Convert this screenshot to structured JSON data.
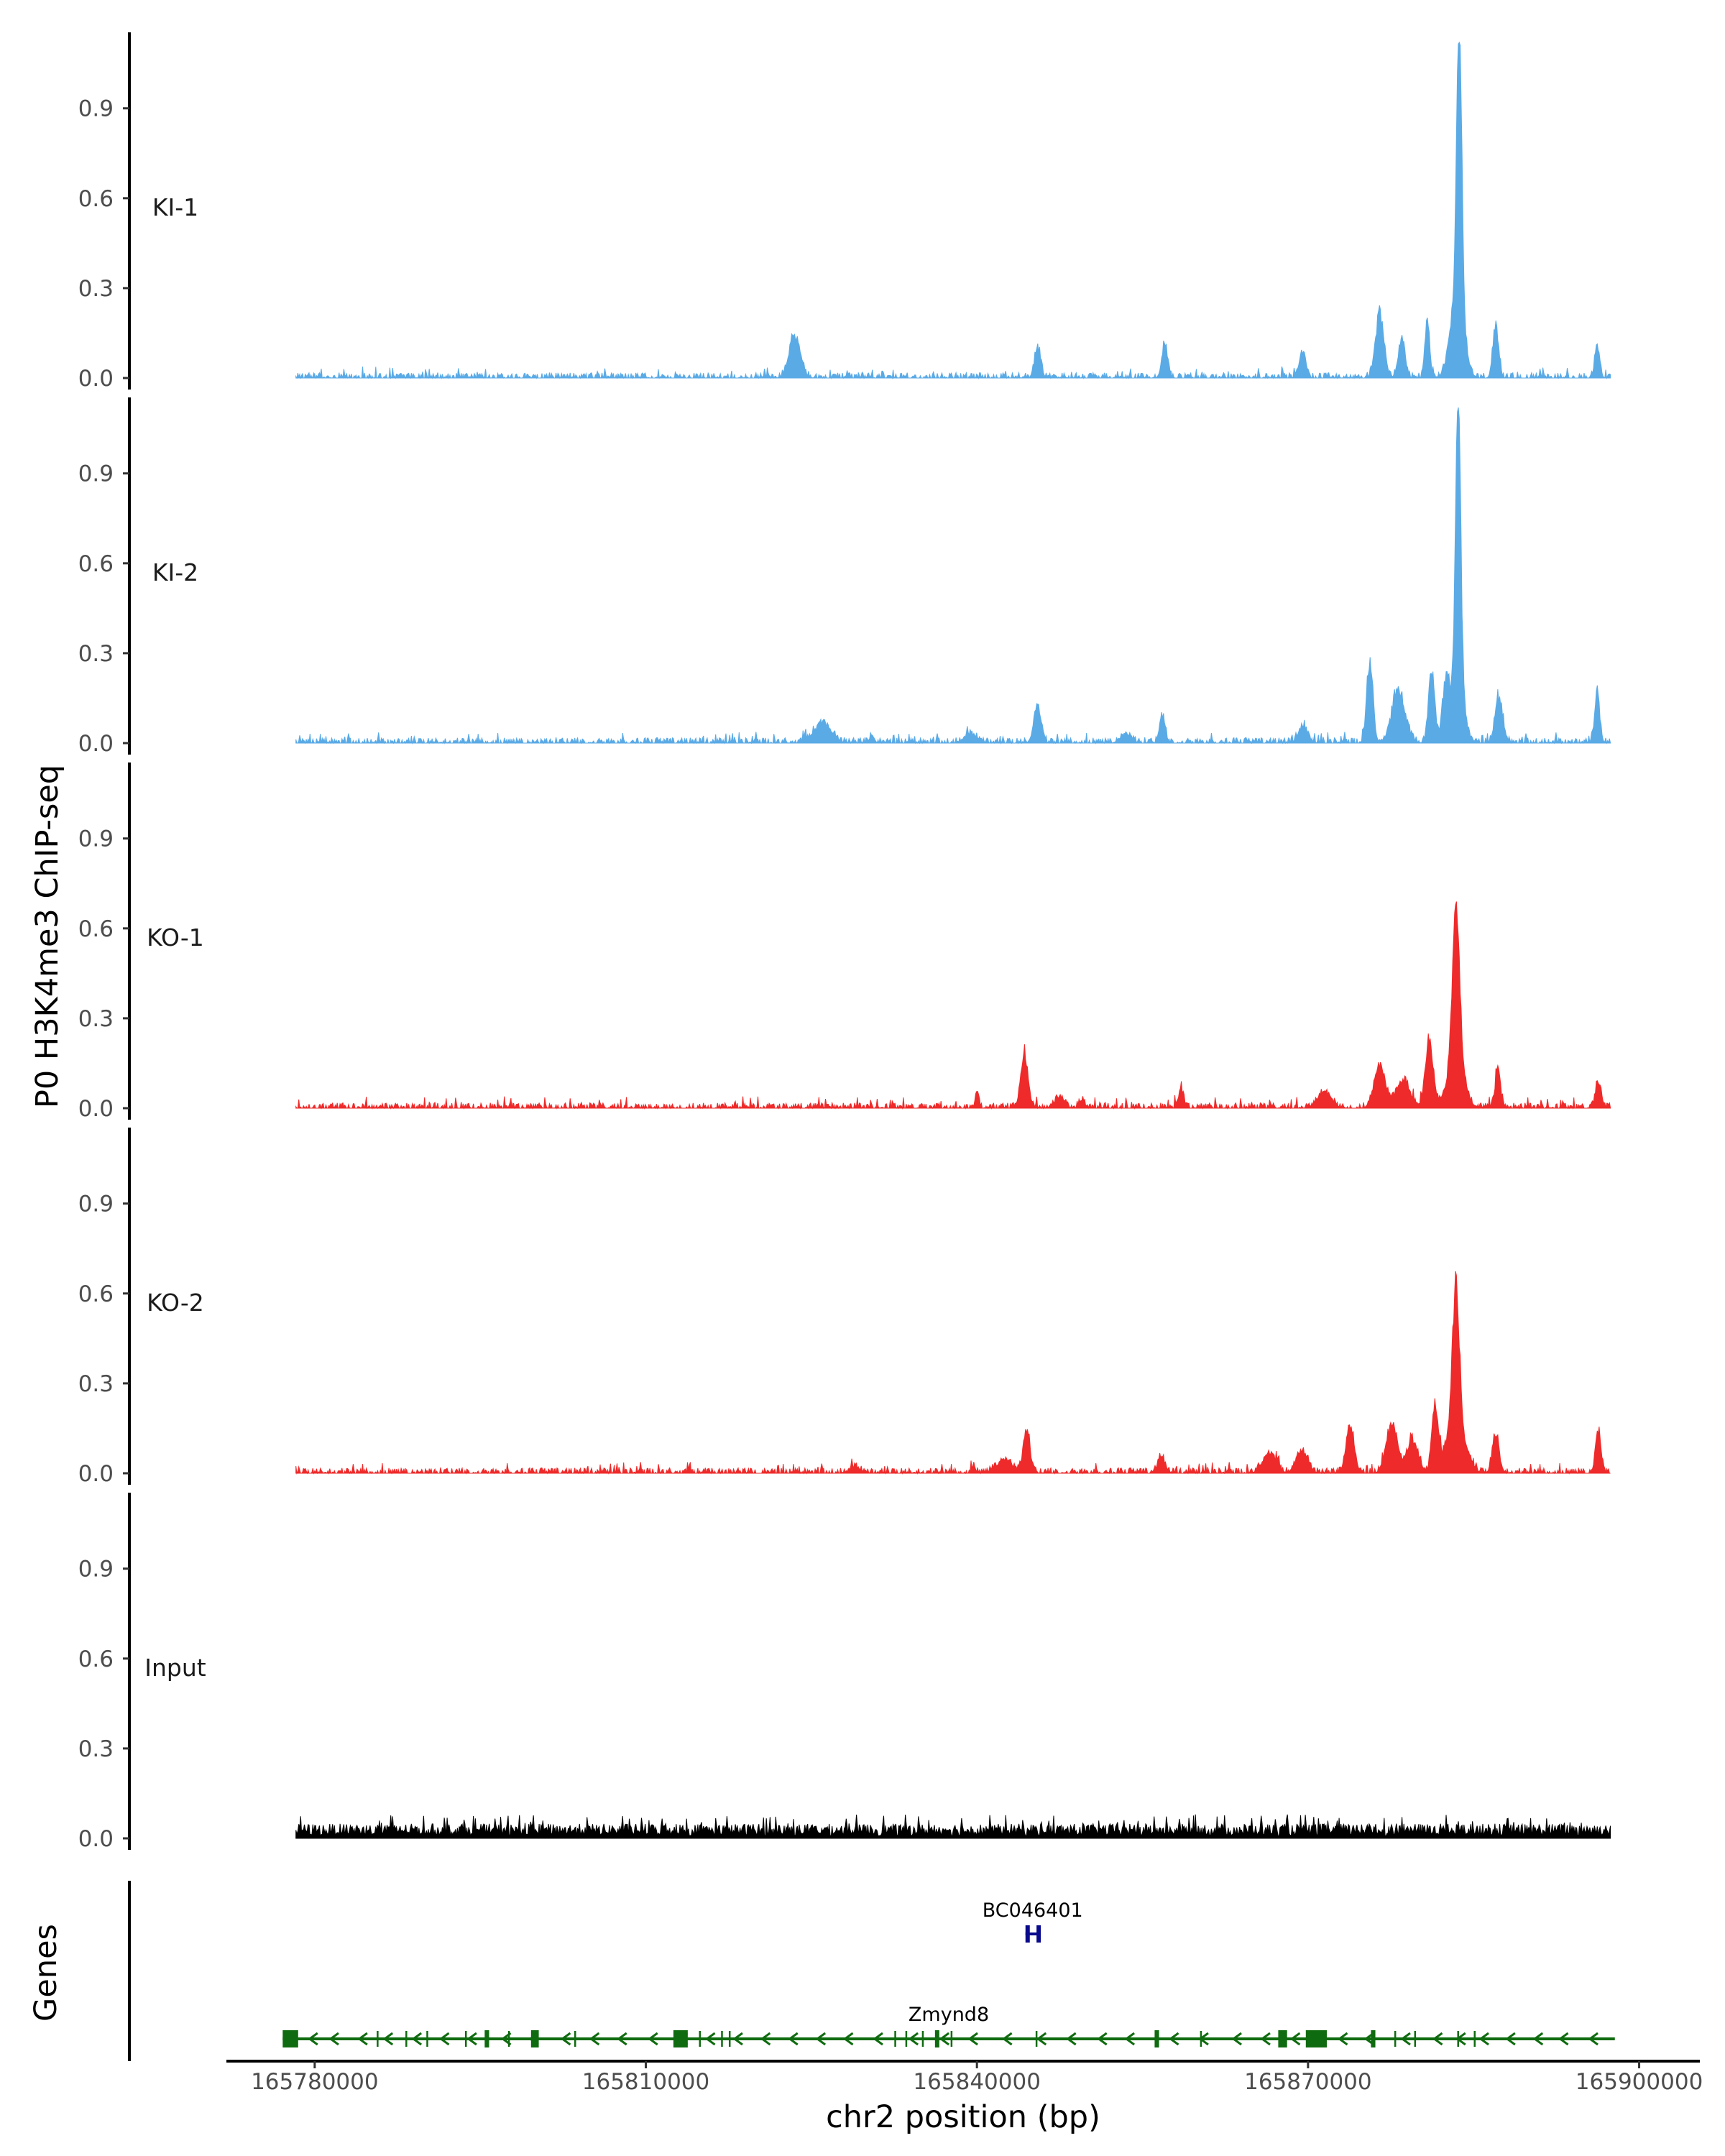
{
  "chart_data": {
    "type": "area",
    "ylabel": "P0 H3K4me3 ChIP-seq",
    "xlabel": "chr2 position (bp)",
    "xlim": [
      165772000,
      165905500
    ],
    "ylim": [
      0,
      1.12
    ],
    "yticks": [
      "0.0",
      "0.3",
      "0.6",
      "0.9"
    ],
    "ytick_values": [
      0,
      0.3,
      0.6,
      0.9
    ],
    "xticks": [
      "165780000",
      "165810000",
      "165840000",
      "165870000",
      "165900000"
    ],
    "xtick_values": [
      165780000,
      165810000,
      165840000,
      165870000,
      165900000
    ],
    "data_range": [
      165778300,
      165897400
    ],
    "series": [
      {
        "name": "KI-1",
        "color": "#5aaae6",
        "noise": 0.018,
        "peaks": [
          [
            165823500,
            0.16,
            500
          ],
          [
            165845500,
            0.11,
            280
          ],
          [
            165857000,
            0.12,
            250
          ],
          [
            165869500,
            0.09,
            300
          ],
          [
            165876500,
            0.23,
            380
          ],
          [
            165878500,
            0.14,
            300
          ],
          [
            165880800,
            0.22,
            200
          ],
          [
            165883700,
            1.07,
            230
          ],
          [
            165883500,
            0.3,
            600
          ],
          [
            165887000,
            0.2,
            250
          ],
          [
            165896200,
            0.12,
            220
          ]
        ]
      },
      {
        "name": "KI-2",
        "color": "#5aaae6",
        "noise": 0.018,
        "peaks": [
          [
            165826000,
            0.07,
            800
          ],
          [
            165830500,
            0.03,
            200
          ],
          [
            165839500,
            0.03,
            600
          ],
          [
            165845500,
            0.14,
            320
          ],
          [
            165853500,
            0.03,
            500
          ],
          [
            165856800,
            0.1,
            250
          ],
          [
            165869500,
            0.06,
            400
          ],
          [
            165875600,
            0.3,
            280
          ],
          [
            165878200,
            0.18,
            600
          ],
          [
            165881200,
            0.27,
            280
          ],
          [
            165882500,
            0.22,
            320
          ],
          [
            165883600,
            1.08,
            220
          ],
          [
            165883600,
            0.28,
            500
          ],
          [
            165887300,
            0.16,
            350
          ],
          [
            165896200,
            0.18,
            230
          ]
        ]
      },
      {
        "name": "KO-1",
        "color": "#ee2a2a",
        "noise": 0.018,
        "peaks": [
          [
            165840000,
            0.06,
            150
          ],
          [
            165849500,
            0.03,
            250
          ],
          [
            165844300,
            0.2,
            320
          ],
          [
            165847500,
            0.04,
            400
          ],
          [
            165858500,
            0.06,
            250
          ],
          [
            165871500,
            0.06,
            600
          ],
          [
            165876500,
            0.16,
            500
          ],
          [
            165878600,
            0.1,
            600
          ],
          [
            165881000,
            0.25,
            350
          ],
          [
            165883400,
            0.58,
            320
          ],
          [
            165883400,
            0.18,
            700
          ],
          [
            165887200,
            0.13,
            250
          ],
          [
            165896300,
            0.1,
            250
          ]
        ]
      },
      {
        "name": "KO-2",
        "color": "#ee2a2a",
        "noise": 0.018,
        "peaks": [
          [
            165829000,
            0.02,
            500
          ],
          [
            165839700,
            0.03,
            150
          ],
          [
            165842500,
            0.05,
            700
          ],
          [
            165844500,
            0.16,
            300
          ],
          [
            165856700,
            0.06,
            300
          ],
          [
            165866500,
            0.07,
            600
          ],
          [
            165869500,
            0.08,
            500
          ],
          [
            165873800,
            0.18,
            350
          ],
          [
            165877600,
            0.18,
            500
          ],
          [
            165879500,
            0.12,
            500
          ],
          [
            165881500,
            0.24,
            280
          ],
          [
            165883400,
            0.5,
            300
          ],
          [
            165883400,
            0.2,
            800
          ],
          [
            165887000,
            0.14,
            300
          ],
          [
            165896300,
            0.15,
            250
          ]
        ]
      },
      {
        "name": "Input",
        "color": "#000000",
        "noise": 0.045,
        "peaks": []
      }
    ],
    "genes": [
      {
        "name": "BC046401",
        "color": "#0a0a8c",
        "start": 165844400,
        "end": 165845700,
        "blocks": [
          [
            165844400,
            165844700
          ],
          [
            165845400,
            165845700
          ]
        ],
        "arrows": []
      },
      {
        "name": "Zmynd8",
        "color": "#0f6b0f",
        "start": 165777100,
        "end": 165897800,
        "blocks": [
          [
            165777100,
            165778500
          ],
          [
            165795400,
            165795800
          ],
          [
            165799600,
            165800300
          ],
          [
            165812500,
            165813800
          ],
          [
            165836200,
            165836500
          ],
          [
            165856100,
            165856500
          ],
          [
            165867300,
            165868100
          ],
          [
            165869800,
            165871700
          ],
          [
            165875700,
            165876100
          ]
        ],
        "ticks": [
          165785700,
          165788300,
          165790200,
          165793700,
          165797600,
          165803600,
          165814900,
          165816900,
          165817600,
          165832600,
          165833600,
          165835100,
          165837700,
          165845400,
          165860300,
          165877900,
          165879700,
          165883600,
          165885100
        ],
        "arrows": [
          165779800,
          165781700,
          165784300,
          165786600,
          165789200,
          165791700,
          165794200,
          165797300,
          165799800,
          165802700,
          165805300,
          165807800,
          165810600,
          165813300,
          165815800,
          165818300,
          165820800,
          165823300,
          165825800,
          165828300,
          165831000,
          165834200,
          165837000,
          165839600,
          165842700,
          165845800,
          165848500,
          165851300,
          165853800,
          165857800,
          165860500,
          165863500,
          165866100,
          165868800,
          165873100,
          165875500,
          165878800,
          165881700,
          165883800,
          165885900,
          165888300,
          165890800,
          165893100,
          165895800
        ]
      }
    ],
    "genes_panel_label": "Genes"
  }
}
